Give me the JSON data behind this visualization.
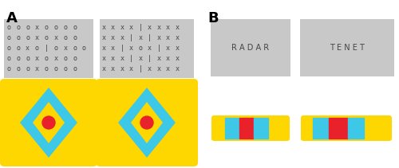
{
  "bg_color": "#ffffff",
  "gray_box_color": "#c8c8c8",
  "yellow_color": "#FFD700",
  "cyan_color": "#3EC8E8",
  "red_color": "#E8212A",
  "label_A": "A",
  "label_B": "B",
  "radar_text": "R A D A R",
  "tenet_text": "T E N E T",
  "chars1": [
    [
      "o",
      "o",
      "o",
      "x",
      "o",
      "o",
      "o",
      "o"
    ],
    [
      "o",
      "o",
      "o",
      "x",
      "o",
      "x",
      "o",
      "o"
    ],
    [
      "o",
      "o",
      "x",
      "o",
      "|",
      "o",
      "x",
      "o",
      "o"
    ],
    [
      "o",
      "o",
      "o",
      "x",
      "o",
      "x",
      "o",
      "o"
    ],
    [
      "o",
      "o",
      "o",
      "x",
      "o",
      "o",
      "o",
      "o"
    ]
  ],
  "chars2": [
    [
      "x",
      "x",
      "x",
      "x",
      "|",
      "x",
      "x",
      "x",
      "x"
    ],
    [
      "x",
      "x",
      "x",
      "|",
      "x",
      "|",
      "x",
      "x",
      "x"
    ],
    [
      "x",
      "x",
      "|",
      "x",
      "o",
      "x",
      "|",
      "x",
      "x"
    ],
    [
      "x",
      "x",
      "x",
      "|",
      "x",
      "|",
      "x",
      "x",
      "x"
    ],
    [
      "x",
      "x",
      "x",
      "x",
      "|",
      "x",
      "x",
      "x",
      "x"
    ]
  ]
}
